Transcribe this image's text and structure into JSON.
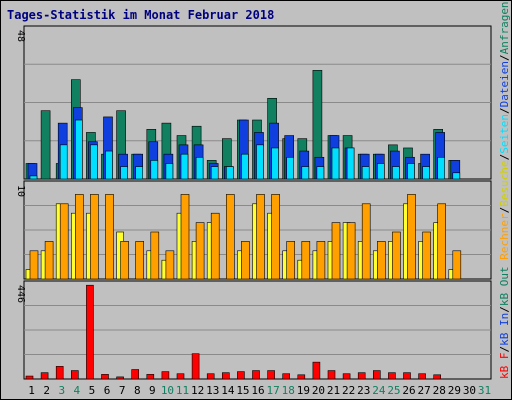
{
  "chart_data": {
    "type": "bar",
    "title": "Tages-Statistik im Monat Februar 2018",
    "x": [
      "1",
      "2",
      "3",
      "4",
      "5",
      "6",
      "7",
      "8",
      "9",
      "10",
      "11",
      "12",
      "13",
      "14",
      "15",
      "16",
      "17",
      "18",
      "19",
      "20",
      "21",
      "22",
      "23",
      "24",
      "25",
      "26",
      "27",
      "28",
      "29",
      "30",
      "31"
    ],
    "weekend_days": [
      "3",
      "4",
      "10",
      "11",
      "17",
      "18",
      "24",
      "25",
      "31"
    ],
    "colors": {
      "anfragen": "#108060",
      "dateien": "#0f3fdf",
      "seiten": "#00dfff",
      "besuche": "#ffff2f",
      "rechner": "#ff9f00",
      "kb": "#ff0000",
      "weekday_label": "#000000",
      "weekend_label": "#108060"
    },
    "panels": [
      {
        "id": "top",
        "ytick": "48",
        "ylim": [
          0,
          48
        ],
        "series": [
          {
            "key": "anfragen",
            "legend": "Anfragen",
            "values": [
              5,
              22,
              5,
              32,
              15,
              8,
              22,
              8,
              16,
              18,
              14,
              17,
              6,
              13,
              19,
              19,
              26,
              13,
              13,
              35,
              14,
              14,
              8,
              8,
              11,
              10,
              5,
              16,
              6,
              0,
              0
            ]
          },
          {
            "key": "dateien",
            "legend": "Dateien",
            "values": [
              5,
              0,
              18,
              23,
              12,
              20,
              8,
              8,
              12,
              8,
              11,
              11,
              5,
              4,
              19,
              15,
              18,
              14,
              9,
              7,
              14,
              10,
              8,
              8,
              9,
              7,
              8,
              15,
              6,
              0,
              0
            ]
          },
          {
            "key": "seiten",
            "legend": "Seiten",
            "values": [
              1,
              0,
              11,
              19,
              11,
              9,
              4,
              4,
              6,
              5,
              8,
              7,
              4,
              4,
              8,
              11,
              10,
              7,
              4,
              4,
              10,
              10,
              4,
              5,
              4,
              5,
              4,
              7,
              2,
              0,
              0
            ]
          }
        ]
      },
      {
        "id": "middle",
        "ytick": "10",
        "ylim": [
          0,
          10
        ],
        "series": [
          {
            "key": "besuche",
            "legend": "Besuche",
            "values": [
              1,
              3,
              8,
              7,
              7,
              0,
              5,
              0,
              3,
              2,
              7,
              4,
              6,
              0,
              3,
              8,
              7,
              3,
              2,
              3,
              4,
              6,
              4,
              3,
              4,
              8,
              4,
              6,
              1,
              0,
              0
            ]
          },
          {
            "key": "rechner",
            "legend": "Rechner",
            "values": [
              3,
              4,
              8,
              9,
              9,
              9,
              4,
              4,
              5,
              3,
              9,
              6,
              7,
              9,
              4,
              9,
              9,
              4,
              4,
              4,
              6,
              6,
              8,
              4,
              5,
              9,
              5,
              8,
              3,
              0,
              0
            ]
          }
        ]
      },
      {
        "id": "bottom",
        "ytick": "446",
        "ylim": [
          0,
          446
        ],
        "series": [
          {
            "key": "kb",
            "legend": "kB F",
            "values": [
              14,
              30,
              60,
              40,
              445,
              22,
              10,
              45,
              22,
              35,
              25,
              120,
              25,
              30,
              35,
              40,
              40,
              25,
              20,
              80,
              40,
              25,
              30,
              40,
              30,
              30,
              25,
              20,
              0,
              0,
              0
            ]
          }
        ]
      }
    ],
    "right_labels": [
      {
        "text": "kB F",
        "color": "#ff0000"
      },
      {
        "text": "/",
        "color": "#000000"
      },
      {
        "text": "kB In",
        "color": "#0f3fdf"
      },
      {
        "text": "/",
        "color": "#000000"
      },
      {
        "text": "kB Out",
        "color": "#108060"
      },
      {
        "text": "Rechner",
        "color": "#ff9f00"
      },
      {
        "text": "/",
        "color": "#000000"
      },
      {
        "text": "Besuche",
        "color": "#cfcf00"
      },
      {
        "text": "/",
        "color": "#000000"
      },
      {
        "text": "Seiten",
        "color": "#00dfff"
      },
      {
        "text": "/",
        "color": "#000000"
      },
      {
        "text": "Dateien",
        "color": "#0f3fdf"
      },
      {
        "text": "/",
        "color": "#000000"
      },
      {
        "text": "Anfragen",
        "color": "#108060"
      }
    ]
  }
}
